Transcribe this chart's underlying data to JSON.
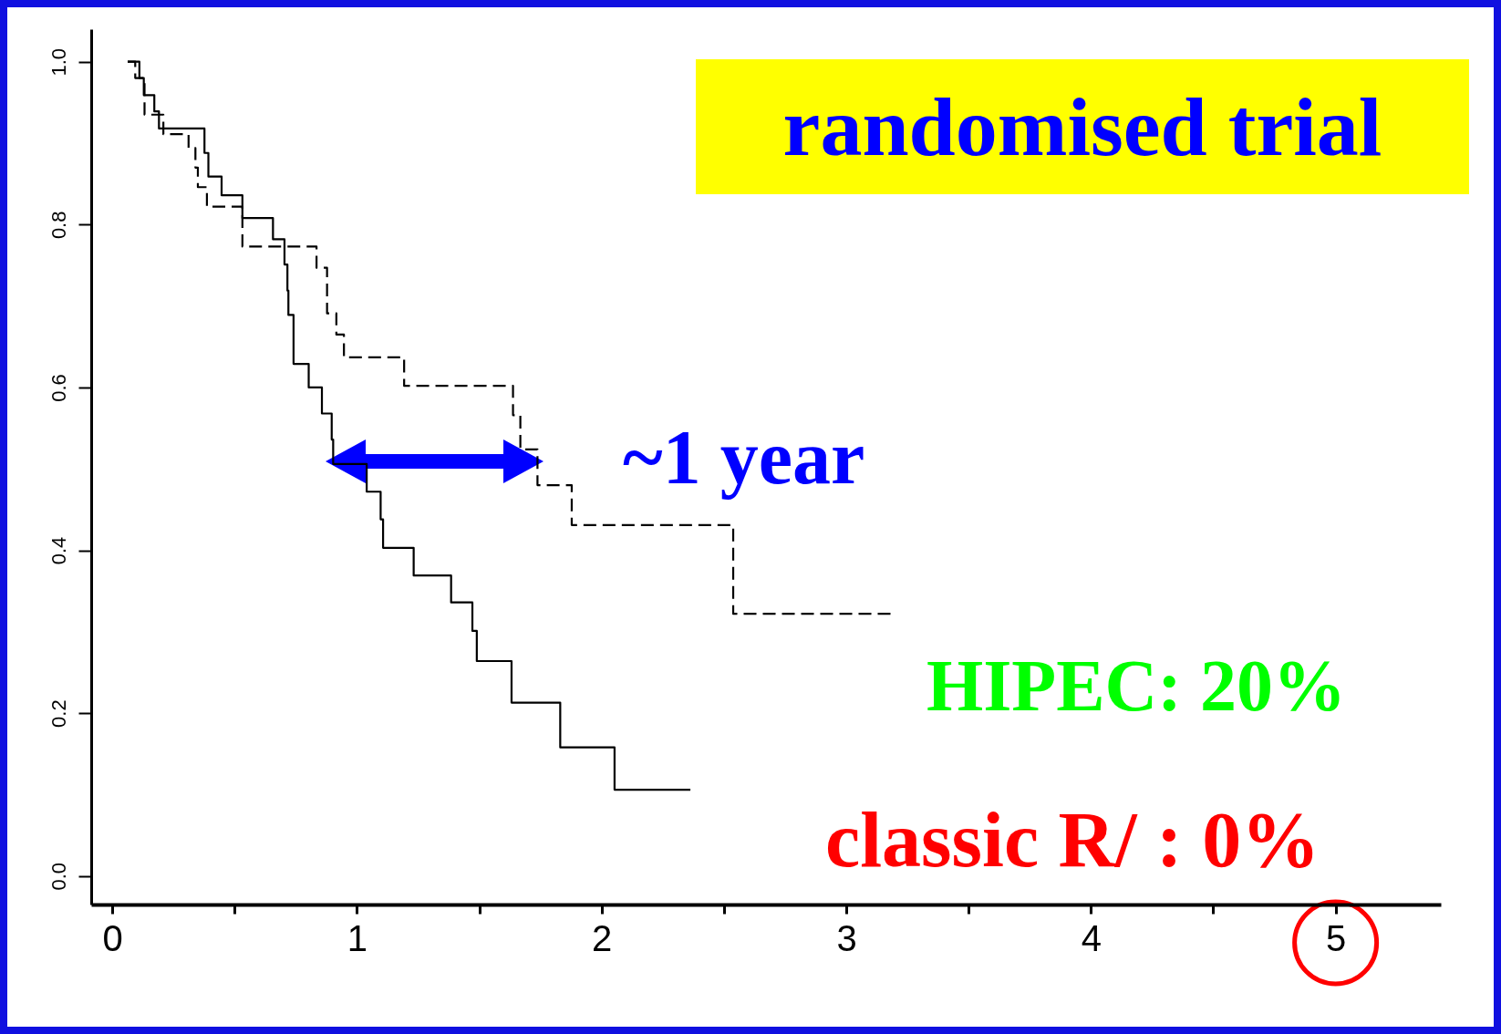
{
  "chart_data": {
    "type": "step",
    "annotations": [
      "randomised trial",
      "~1 year",
      "HIPEC: 20%",
      "classic R/ : 0%"
    ],
    "xlim": [
      -0.086,
      5.43
    ],
    "ylim": [
      -0.035,
      1.04
    ],
    "xticks": [
      0,
      {
        "value": 0.5,
        "label": null
      },
      1,
      {
        "value": 1.5,
        "label": null
      },
      2,
      {
        "value": 2.5,
        "label": null
      },
      3,
      {
        "value": 3.5,
        "label": null
      },
      4,
      {
        "value": 4.5,
        "label": null
      },
      5
    ],
    "yticks": [
      {
        "value": 0,
        "label": "0.0"
      },
      0.2,
      0.4,
      0.6,
      0.8,
      {
        "value": 1,
        "label": "1.0"
      }
    ],
    "grid": false,
    "marker": "none",
    "series": [
      {
        "color": "#000000",
        "line_style": "solid",
        "x": [
          0.063,
          0.111,
          0.129,
          0.172,
          0.191,
          0.377,
          0.393,
          0.447,
          0.532,
          0.657,
          0.704,
          0.716,
          0.72,
          0.741,
          0.803,
          0.857,
          0.897,
          0.903,
          1.04,
          1.097,
          1.107,
          1.232,
          1.385,
          1.472,
          1.49,
          1.632,
          1.831,
          2.053,
          2.363
        ],
        "values": [
          1.0,
          0.98,
          0.959,
          0.939,
          0.918,
          0.888,
          0.859,
          0.836,
          0.808,
          0.782,
          0.751,
          0.719,
          0.689,
          0.629,
          0.6,
          0.568,
          0.536,
          0.506,
          0.472,
          0.438,
          0.403,
          0.369,
          0.336,
          0.301,
          0.264,
          0.213,
          0.158,
          0.106,
          0.106
        ]
      },
      {
        "color": "#000000",
        "line_style": "dashed",
        "x": [
          0.063,
          0.094,
          0.132,
          0.209,
          0.312,
          0.34,
          0.35,
          0.387,
          0.532,
          0.835,
          0.878,
          0.916,
          0.947,
          1.193,
          1.638,
          1.668,
          1.738,
          1.878,
          2.538,
          3.187
        ],
        "values": [
          1.0,
          0.98,
          0.935,
          0.911,
          0.894,
          0.87,
          0.846,
          0.822,
          0.773,
          0.747,
          0.691,
          0.665,
          0.637,
          0.602,
          0.566,
          0.524,
          0.48,
          0.431,
          0.322,
          0.322
        ]
      }
    ]
  }
}
